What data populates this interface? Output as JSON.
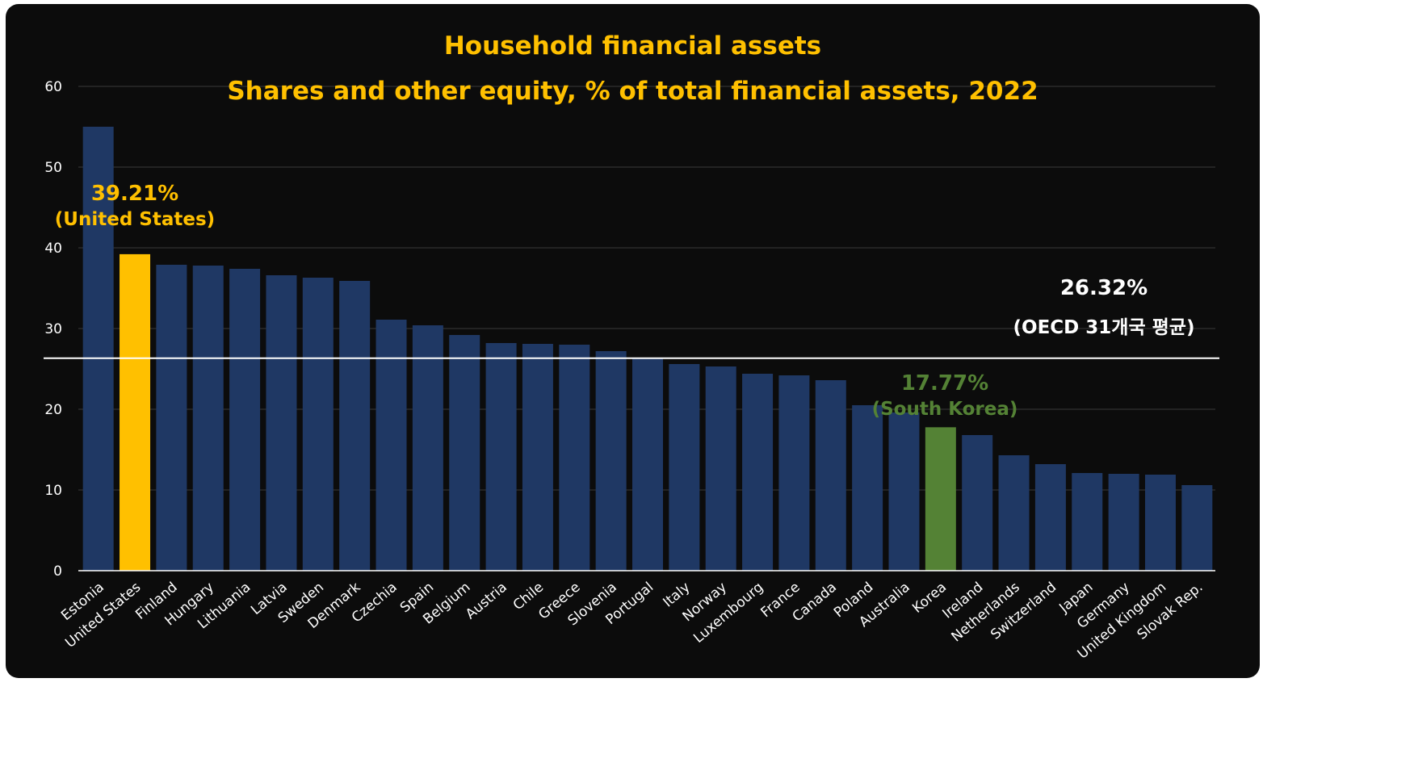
{
  "chart_data": {
    "type": "bar",
    "title": "Household financial assets",
    "subtitle": "Shares and other equity, % of total financial assets, 2022",
    "categories": [
      "Estonia",
      "United States",
      "Finland",
      "Hungary",
      "Lithuania",
      "Latvia",
      "Sweden",
      "Denmark",
      "Czechia",
      "Spain",
      "Belgium",
      "Austria",
      "Chile",
      "Greece",
      "Slovenia",
      "Portugal",
      "Italy",
      "Norway",
      "Luxembourg",
      "France",
      "Canada",
      "Poland",
      "Australia",
      "Korea",
      "Ireland",
      "Netherlands",
      "Switzerland",
      "Japan",
      "Germany",
      "United Kingdom",
      "Slovak Rep."
    ],
    "values": [
      55.0,
      39.21,
      37.9,
      37.8,
      37.4,
      36.6,
      36.3,
      35.9,
      31.1,
      30.4,
      29.2,
      28.2,
      28.1,
      28.0,
      27.2,
      26.4,
      25.6,
      25.3,
      24.4,
      24.2,
      23.6,
      20.5,
      19.6,
      17.77,
      16.8,
      14.3,
      13.2,
      12.1,
      12.0,
      11.9,
      10.6
    ],
    "ylim": [
      0,
      60
    ],
    "yticks": [
      0,
      10,
      20,
      30,
      40,
      50,
      60
    ],
    "grid": true,
    "reference_line": 26.32,
    "colors": {
      "default": "#1f3864",
      "highlight_us": "#ffc000",
      "highlight_korea": "#548235",
      "reference": "#ffffff",
      "grid": "#3a3a3a",
      "text": "#ffffff"
    },
    "annotations": {
      "us": {
        "value": "39.21%",
        "label": "(United States)"
      },
      "oecd": {
        "value": "26.32%",
        "label": "(OECD 31개국 평균)"
      },
      "korea": {
        "value": "17.77%",
        "label": "(South Korea)"
      }
    }
  }
}
